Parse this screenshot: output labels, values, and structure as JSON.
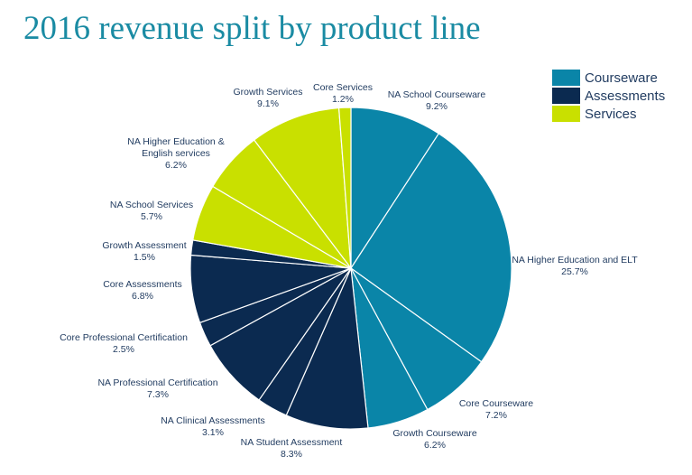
{
  "chart_data": {
    "type": "pie",
    "title": "2016 revenue split by product line",
    "legend_position": "top-right",
    "groups": [
      {
        "name": "Courseware",
        "color": "#0a85a8"
      },
      {
        "name": "Assessments",
        "color": "#0b2a50"
      },
      {
        "name": "Services",
        "color": "#c9e000"
      }
    ],
    "slices": [
      {
        "label": [
          "NA School Courseware"
        ],
        "pct": "9.2%",
        "value": 9.2,
        "group": 0
      },
      {
        "label": [
          "NA Higher Education and ELT"
        ],
        "pct": "25.7%",
        "value": 25.7,
        "group": 0
      },
      {
        "label": [
          "Core Courseware"
        ],
        "pct": "7.2%",
        "value": 7.2,
        "group": 0
      },
      {
        "label": [
          "Growth Courseware"
        ],
        "pct": "6.2%",
        "value": 6.2,
        "group": 0
      },
      {
        "label": [
          "NA Student Assessment"
        ],
        "pct": "8.3%",
        "value": 8.3,
        "group": 1
      },
      {
        "label": [
          "NA Clinical Assessments"
        ],
        "pct": "3.1%",
        "value": 3.1,
        "group": 1
      },
      {
        "label": [
          "NA Professional Certification"
        ],
        "pct": "7.3%",
        "value": 7.3,
        "group": 1
      },
      {
        "label": [
          "Core Professional Certification"
        ],
        "pct": "2.5%",
        "value": 2.5,
        "group": 1
      },
      {
        "label": [
          "Core Assessments"
        ],
        "pct": "6.8%",
        "value": 6.8,
        "group": 1
      },
      {
        "label": [
          "Growth Assessment"
        ],
        "pct": "1.5%",
        "value": 1.5,
        "group": 1
      },
      {
        "label": [
          "NA School Services"
        ],
        "pct": "5.7%",
        "value": 5.7,
        "group": 2
      },
      {
        "label": [
          "NA Higher Education &",
          "English services"
        ],
        "pct": "6.2%",
        "value": 6.2,
        "group": 2
      },
      {
        "label": [
          "Growth Services"
        ],
        "pct": "9.1%",
        "value": 9.1,
        "group": 2
      },
      {
        "label": [
          "Core Services"
        ],
        "pct": "1.2%",
        "value": 1.2,
        "group": 2
      }
    ]
  }
}
